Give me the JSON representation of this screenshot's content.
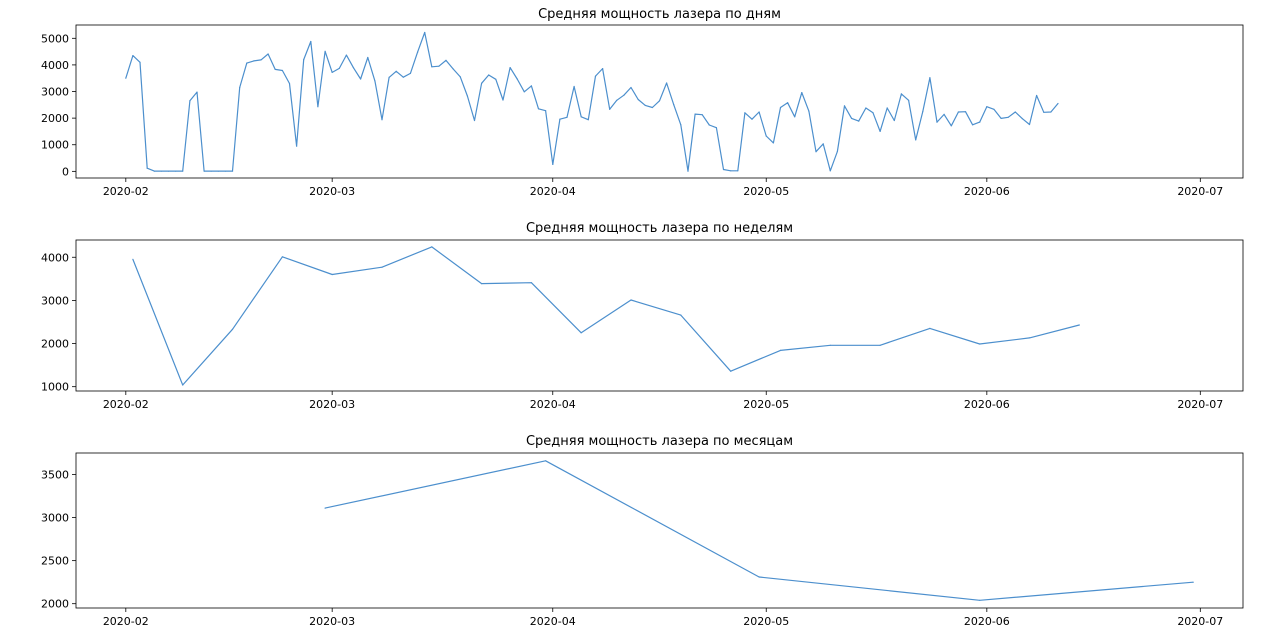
{
  "colors": {
    "series": "#4c8fcd"
  },
  "chart_data": [
    {
      "type": "line",
      "title": "Средняя мощность лазера по дням",
      "xlabel": "",
      "ylabel": "",
      "xlim": [
        "2020-01-25",
        "2020-07-07"
      ],
      "ylim": [
        -250,
        5500
      ],
      "x_ticks": [
        "2020-02",
        "2020-03",
        "2020-04",
        "2020-05",
        "2020-06",
        "2020-07"
      ],
      "y_ticks": [
        0,
        1000,
        2000,
        3000,
        4000,
        5000
      ],
      "grid": false,
      "series": [
        {
          "x": [
            "2020-02-01",
            "2020-02-02",
            "2020-02-03",
            "2020-02-04",
            "2020-02-05",
            "2020-02-06",
            "2020-02-07",
            "2020-02-08",
            "2020-02-09",
            "2020-02-10",
            "2020-02-11",
            "2020-02-12",
            "2020-02-13",
            "2020-02-14",
            "2020-02-15",
            "2020-02-16",
            "2020-02-17",
            "2020-02-18",
            "2020-02-19",
            "2020-02-20",
            "2020-02-21",
            "2020-02-22",
            "2020-02-23",
            "2020-02-24",
            "2020-02-25",
            "2020-02-26",
            "2020-02-27",
            "2020-02-28",
            "2020-02-29",
            "2020-03-01",
            "2020-03-02",
            "2020-03-03",
            "2020-03-04",
            "2020-03-05",
            "2020-03-06",
            "2020-03-07",
            "2020-03-08",
            "2020-03-09",
            "2020-03-10",
            "2020-03-11",
            "2020-03-12",
            "2020-03-13",
            "2020-03-14",
            "2020-03-15",
            "2020-03-16",
            "2020-03-17",
            "2020-03-18",
            "2020-03-19",
            "2020-03-20",
            "2020-03-21",
            "2020-03-22",
            "2020-03-23",
            "2020-03-24",
            "2020-03-25",
            "2020-03-26",
            "2020-03-27",
            "2020-03-28",
            "2020-03-29",
            "2020-03-30",
            "2020-03-31",
            "2020-04-01",
            "2020-04-02",
            "2020-04-03",
            "2020-04-04",
            "2020-04-05",
            "2020-04-06",
            "2020-04-07",
            "2020-04-08",
            "2020-04-09",
            "2020-04-10",
            "2020-04-11",
            "2020-04-12",
            "2020-04-13",
            "2020-04-14",
            "2020-04-15",
            "2020-04-16",
            "2020-04-17",
            "2020-04-18",
            "2020-04-19",
            "2020-04-20",
            "2020-04-21",
            "2020-04-22",
            "2020-04-23",
            "2020-04-24",
            "2020-04-25",
            "2020-04-26",
            "2020-04-27",
            "2020-04-28",
            "2020-04-29",
            "2020-04-30",
            "2020-05-01",
            "2020-05-02",
            "2020-05-03",
            "2020-05-04",
            "2020-05-05",
            "2020-05-06",
            "2020-05-07",
            "2020-05-08",
            "2020-05-09",
            "2020-05-10",
            "2020-05-11",
            "2020-05-12",
            "2020-05-13",
            "2020-05-14",
            "2020-05-15",
            "2020-05-16",
            "2020-05-17",
            "2020-05-18",
            "2020-05-19",
            "2020-05-20",
            "2020-05-21",
            "2020-05-22",
            "2020-05-23",
            "2020-05-24",
            "2020-05-25",
            "2020-05-26",
            "2020-05-27",
            "2020-05-28",
            "2020-05-29",
            "2020-05-30",
            "2020-05-31",
            "2020-06-01",
            "2020-06-02",
            "2020-06-03",
            "2020-06-04",
            "2020-06-05",
            "2020-06-06",
            "2020-06-07",
            "2020-06-08",
            "2020-06-09",
            "2020-06-10",
            "2020-06-11"
          ],
          "y": [
            3500,
            4350,
            4100,
            120,
            10,
            10,
            10,
            10,
            10,
            2650,
            2980,
            10,
            10,
            10,
            10,
            10,
            3150,
            4070,
            4150,
            4190,
            4410,
            3830,
            3790,
            3300,
            950,
            4200,
            4880,
            2430,
            4510,
            3720,
            3870,
            4370,
            3890,
            3470,
            4280,
            3400,
            1940,
            3530,
            3760,
            3540,
            3680,
            4480,
            5220,
            3930,
            3950,
            4170,
            3850,
            3550,
            2830,
            1910,
            3310,
            3620,
            3460,
            2680,
            3900,
            3470,
            2990,
            3210,
            2350,
            2280,
            260,
            1960,
            2030,
            3190,
            2050,
            1940,
            3580,
            3860,
            2330,
            2670,
            2860,
            3150,
            2700,
            2480,
            2400,
            2650,
            3320,
            2510,
            1750,
            10,
            2150,
            2130,
            1740,
            1640,
            70,
            20,
            20,
            2200,
            1960,
            2230,
            1330,
            1070,
            2400,
            2580,
            2050,
            2960,
            2260,
            740,
            1030,
            20,
            750,
            2460,
            1990,
            1890,
            2380,
            2200,
            1500,
            2380,
            1910,
            2910,
            2670,
            1180,
            2250,
            3520,
            1850,
            2140,
            1710,
            2230,
            2240,
            1750,
            1850,
            2430,
            2330,
            1990,
            2030,
            2230,
            1980,
            1760,
            2850,
            2220,
            2230,
            2550
          ]
        }
      ]
    },
    {
      "type": "line",
      "title": "Средняя мощность лазера по неделям",
      "xlabel": "",
      "ylabel": "",
      "xlim": [
        "2020-01-25",
        "2020-07-07"
      ],
      "ylim": [
        900,
        4400
      ],
      "x_ticks": [
        "2020-02",
        "2020-03",
        "2020-04",
        "2020-05",
        "2020-06",
        "2020-07"
      ],
      "y_ticks": [
        1000,
        2000,
        3000,
        4000
      ],
      "grid": false,
      "series": [
        {
          "x": [
            "2020-02-02",
            "2020-02-09",
            "2020-02-16",
            "2020-02-23",
            "2020-03-01",
            "2020-03-08",
            "2020-03-15",
            "2020-03-22",
            "2020-03-29",
            "2020-04-05",
            "2020-04-12",
            "2020-04-19",
            "2020-04-26",
            "2020-05-03",
            "2020-05-10",
            "2020-05-17",
            "2020-05-24",
            "2020-05-31",
            "2020-06-07",
            "2020-06-14"
          ],
          "y": [
            3950,
            1040,
            2330,
            4010,
            3600,
            3770,
            4240,
            3390,
            3410,
            2250,
            3010,
            2660,
            1360,
            1840,
            1960,
            1960,
            2350,
            1990,
            2130,
            2430
          ]
        }
      ]
    },
    {
      "type": "line",
      "title": "Средняя мощность лазера по месяцам",
      "xlabel": "",
      "ylabel": "",
      "xlim": [
        "2020-01-25",
        "2020-07-07"
      ],
      "ylim": [
        1950,
        3750
      ],
      "x_ticks": [
        "2020-02",
        "2020-03",
        "2020-04",
        "2020-05",
        "2020-06",
        "2020-07"
      ],
      "y_ticks": [
        2000,
        2500,
        3000,
        3500
      ],
      "grid": false,
      "series": [
        {
          "x": [
            "2020-02-29",
            "2020-03-31",
            "2020-04-30",
            "2020-05-31",
            "2020-06-30"
          ],
          "y": [
            3110,
            3660,
            2310,
            2040,
            2250
          ]
        }
      ]
    }
  ]
}
